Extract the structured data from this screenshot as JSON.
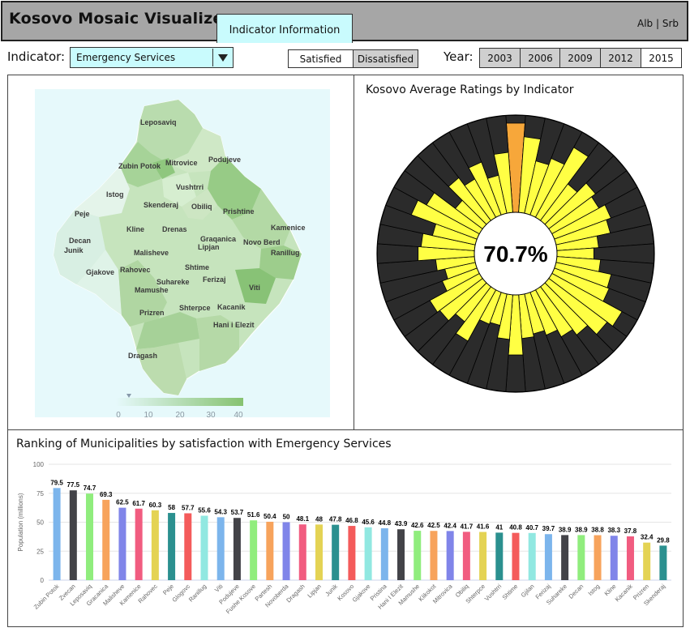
{
  "header": {
    "title": "Kosovo Mosaic Visualizer",
    "info_tab": "Indicator Information",
    "languages": "Alb | Srb"
  },
  "controls": {
    "indicator_label": "Indicator:",
    "indicator_value": "Emergency Services",
    "satisfied_label": "Satisfied",
    "dissatisfied_label": "Dissatisfied",
    "year_label": "Year:",
    "years": [
      "2003",
      "2006",
      "2009",
      "2012",
      "2015"
    ],
    "selected_year": "2015"
  },
  "map": {
    "labels": [
      "Leposaviq",
      "Zubin Potok",
      "Mitrovice",
      "Podujeve",
      "Vushtrri",
      "Istog",
      "Skenderaj",
      "Obiliq",
      "Prishtine",
      "Peje",
      "Kline",
      "Drenas",
      "Kamenice",
      "Graqanica",
      "Lipjan",
      "Novo Berd",
      "Decan",
      "Junik",
      "Malisheve",
      "Ranillug",
      "Gjakove",
      "Rahovec",
      "Shtime",
      "Suhareke",
      "Ferizaj",
      "Mamushe",
      "Viti",
      "Prizren",
      "Shterpce",
      "Kacanik",
      "Hani i Elezit",
      "Dragash"
    ],
    "legend_ticks": [
      "0",
      "10",
      "20",
      "30",
      "40"
    ]
  },
  "radial": {
    "title": "Kosovo Average Ratings by Indicator",
    "center_value": "70.7%",
    "segments": [
      0.92,
      0.78,
      0.55,
      0.62,
      0.82,
      0.47,
      0.6,
      0.55,
      0.62,
      0.57,
      0.43,
      0.38,
      0.45,
      0.58,
      0.6,
      0.82,
      0.75,
      0.62,
      0.55,
      0.47,
      0.42,
      0.45,
      0.62,
      0.46,
      0.33,
      0.35,
      0.6,
      0.45,
      0.55,
      0.58,
      0.38,
      0.32,
      0.4,
      0.58,
      0.55,
      0.45,
      0.72,
      0.62,
      0.35,
      0.55,
      0.45,
      0.58,
      0.4,
      0.62
    ],
    "highlight_index": 0,
    "colors": {
      "fill": "#ffff44",
      "highlight": "#f7a73a",
      "bg": "#2b2b2b"
    }
  },
  "chart_data": {
    "type": "bar",
    "title": "Ranking of Municipalities by satisfaction with Emergency Services",
    "ylabel": "Population (millions)",
    "ylim": [
      0,
      100
    ],
    "yticks": [
      "0",
      "25",
      "50",
      "75",
      "100"
    ],
    "categories": [
      "Zubin Potok",
      "Zvecan",
      "Leposaviq",
      "Gracanica",
      "Malisheve",
      "Kamenice",
      "Rahovec",
      "Peje",
      "Glogovc",
      "Ranillug",
      "Viti",
      "Podujeve",
      "Fushe Kosove",
      "Partesh",
      "Novoberda",
      "Dragash",
      "Lipjan",
      "Junik",
      "Kosovo",
      "Gjakove",
      "Pristina",
      "Hani I Elezit",
      "Mamushe",
      "Klikokot",
      "Mitrovica",
      "Obiliq",
      "Shterpce",
      "Vushtrri",
      "Shtime",
      "Gjilan",
      "Ferizaj",
      "Suhareke",
      "Decan",
      "Istog",
      "Kline",
      "Kacanik",
      "Prizren",
      "Skenderaj"
    ],
    "values": [
      79.5,
      77.5,
      74.7,
      69.3,
      62.5,
      61.7,
      60.3,
      58,
      57.7,
      55.6,
      54.3,
      53.7,
      51.6,
      50.4,
      50,
      48.1,
      48,
      47.8,
      46.8,
      45.6,
      44.8,
      43.9,
      42.6,
      42.5,
      42.4,
      41.7,
      41.6,
      41,
      40.8,
      40.7,
      39.7,
      38.9,
      38.9,
      38.8,
      38.3,
      37.8,
      32.4,
      29.8
    ],
    "value_labels": [
      "79.5",
      "77.5",
      "74.7",
      "69.3",
      "62.5",
      "61.7",
      "60.3",
      "58",
      "57.7",
      "55.6",
      "54.3",
      "53.7",
      "51.6",
      "50.4",
      "50",
      "48.1",
      "48",
      "47.8",
      "46.8",
      "45.6",
      "44.8",
      "43.9",
      "42.6",
      "42.5",
      "42.4",
      "41.7",
      "41.6",
      "41",
      "40.8",
      "40.7",
      "39.7",
      "38.9",
      "38.9",
      "38.8",
      "38.3",
      "37.8",
      "32.4",
      "29.8"
    ],
    "colors": [
      "#7cb5ec",
      "#434348",
      "#90ed7d",
      "#f7a35c",
      "#8085e9",
      "#f15c80",
      "#e4d354",
      "#2b908f",
      "#f45b5b",
      "#91e8e1"
    ]
  }
}
